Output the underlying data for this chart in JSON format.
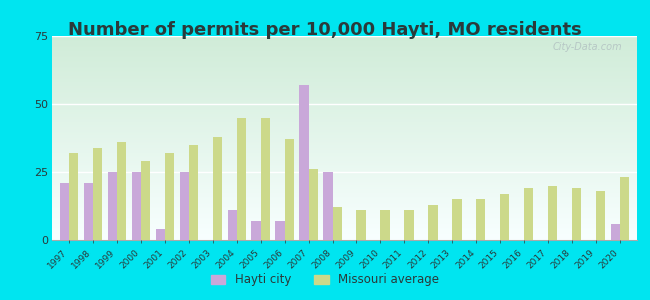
{
  "title": "Number of permits per 10,000 Hayti, MO residents",
  "years": [
    1997,
    1998,
    1999,
    2000,
    2001,
    2002,
    2003,
    2004,
    2005,
    2006,
    2007,
    2008,
    2009,
    2010,
    2011,
    2012,
    2013,
    2014,
    2015,
    2016,
    2017,
    2018,
    2019,
    2020
  ],
  "hayti": [
    21,
    21,
    25,
    25,
    4,
    25,
    0,
    11,
    7,
    7,
    57,
    25,
    0,
    0,
    0,
    0,
    0,
    0,
    0,
    0,
    0,
    0,
    0,
    6
  ],
  "missouri": [
    32,
    34,
    36,
    29,
    32,
    35,
    38,
    45,
    45,
    37,
    26,
    12,
    11,
    11,
    11,
    13,
    15,
    15,
    17,
    19,
    20,
    19,
    18,
    23
  ],
  "hayti_color": "#c9a8d9",
  "missouri_color": "#ccd98a",
  "background_outer": "#00e5f0",
  "grad_top": "#d0ecd8",
  "grad_bottom": "#f8ffff",
  "ylim": [
    0,
    75
  ],
  "yticks": [
    0,
    25,
    50,
    75
  ],
  "title_fontsize": 13,
  "legend_hayti": "Hayti city",
  "legend_missouri": "Missouri average",
  "watermark": "City-Data.com",
  "text_color": "#2a3a3a"
}
